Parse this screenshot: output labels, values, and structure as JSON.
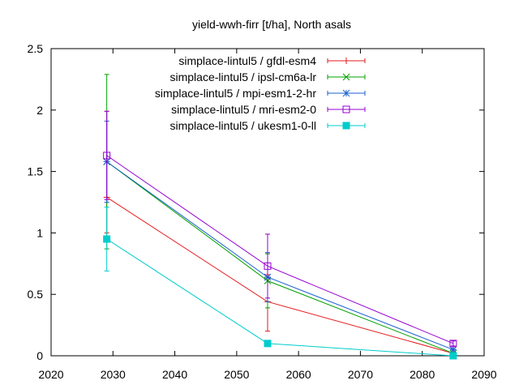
{
  "chart_data": {
    "type": "line",
    "title": "yield-wwh-firr [t/ha], North asals",
    "xlabel": "",
    "ylabel": "",
    "xlim": [
      2020,
      2090
    ],
    "ylim": [
      0,
      2.5
    ],
    "xticks": [
      2020,
      2030,
      2040,
      2050,
      2060,
      2070,
      2080,
      2090
    ],
    "xtick_labels": [
      "2020",
      "2030",
      "2040",
      "2050",
      "2060",
      "2070",
      "2080",
      "2090"
    ],
    "yticks": [
      0,
      0.5,
      1,
      1.5,
      2,
      2.5
    ],
    "ytick_labels": [
      "0",
      "0.5",
      "1",
      "1.5",
      "2",
      "2.5"
    ],
    "grid": false,
    "legend_position": "top-right",
    "error_bars": true,
    "series": [
      {
        "name": "simplace-lintul5 / gfdl-esm4",
        "color": "#e41a1c",
        "marker": "plus",
        "x": [
          2029,
          2055,
          2085
        ],
        "y": [
          1.29,
          0.44,
          0.02
        ],
        "err_low": [
          1.0,
          0.2,
          0.01
        ],
        "err_high": [
          1.99,
          0.66,
          0.03
        ]
      },
      {
        "name": "simplace-lintul5 / ipsl-cm6a-lr",
        "color": "#00a000",
        "marker": "cross",
        "x": [
          2029,
          2055,
          2085
        ],
        "y": [
          1.58,
          0.61,
          0.02
        ],
        "err_low": [
          0.87,
          0.39,
          0.01
        ],
        "err_high": [
          2.29,
          0.83,
          0.03
        ]
      },
      {
        "name": "simplace-lintul5 / mpi-esm1-2-hr",
        "color": "#1a5fd0",
        "marker": "star",
        "x": [
          2029,
          2055,
          2085
        ],
        "y": [
          1.58,
          0.64,
          0.05
        ],
        "err_low": [
          1.25,
          0.44,
          0.04
        ],
        "err_high": [
          1.91,
          0.84,
          0.06
        ]
      },
      {
        "name": "simplace-lintul5 / mri-esm2-0",
        "color": "#9400d3",
        "marker": "open-square",
        "x": [
          2029,
          2055,
          2085
        ],
        "y": [
          1.63,
          0.73,
          0.1
        ],
        "err_low": [
          1.27,
          0.47,
          0.08
        ],
        "err_high": [
          1.99,
          0.99,
          0.12
        ]
      },
      {
        "name": "simplace-lintul5 / ukesm1-0-ll",
        "color": "#00cccc",
        "marker": "filled-square",
        "x": [
          2029,
          2055,
          2085
        ],
        "y": [
          0.95,
          0.1,
          0.0
        ],
        "err_low": [
          0.69,
          0.09,
          0.0
        ],
        "err_high": [
          1.21,
          0.11,
          0.01
        ]
      }
    ]
  }
}
